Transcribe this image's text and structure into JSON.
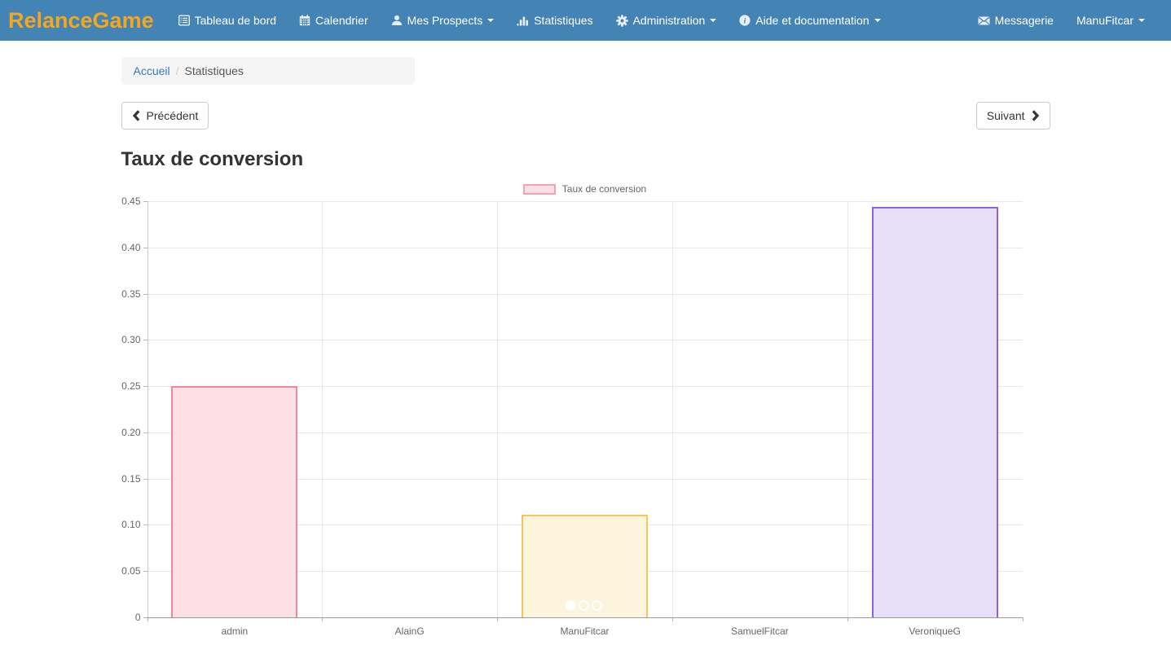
{
  "navbar": {
    "brand": "RelanceGame",
    "colors": {
      "background": "#4484b4",
      "text": "#ffffff",
      "brand": "#f2a71f"
    },
    "items": [
      {
        "label": "Tableau de bord",
        "icon": "dashboard-icon",
        "dropdown": false
      },
      {
        "label": "Calendrier",
        "icon": "calendar-icon",
        "dropdown": false
      },
      {
        "label": "Mes Prospects",
        "icon": "user-icon",
        "dropdown": true
      },
      {
        "label": "Statistiques",
        "icon": "stats-icon",
        "dropdown": false
      },
      {
        "label": "Administration",
        "icon": "gear-icon",
        "dropdown": true
      },
      {
        "label": "Aide et documentation",
        "icon": "info-icon",
        "dropdown": true
      }
    ],
    "right_items": [
      {
        "label": "Messagerie",
        "icon": "envelope-icon",
        "dropdown": false
      },
      {
        "label": "ManuFitcar",
        "icon": null,
        "dropdown": true
      }
    ]
  },
  "breadcrumb": {
    "separator": "/",
    "items": [
      {
        "label": "Accueil",
        "link": true
      },
      {
        "label": "Statistiques",
        "link": false
      }
    ]
  },
  "pager": {
    "previous_label": "Précédent",
    "next_label": "Suivant"
  },
  "page_title": "Taux de conversion",
  "chart_data": {
    "type": "bar",
    "title": "Taux de conversion",
    "legend_position": "top",
    "legend": [
      {
        "label": "Taux de conversion",
        "fill": "#fce0e8",
        "stroke": "#f4a2b7"
      }
    ],
    "categories": [
      "admin",
      "AlainG",
      "ManuFitcar",
      "SamuelFitcar",
      "VeroniqueG"
    ],
    "values": [
      0.25,
      0,
      0.111,
      0,
      0.444
    ],
    "bar_colors": [
      {
        "fill": "#fce0e6",
        "stroke": "#f2849c"
      },
      null,
      {
        "fill": "#fdf4dd",
        "stroke": "#f4c65e"
      },
      null,
      {
        "fill": "#e7def9",
        "stroke": "#8f62dd"
      }
    ],
    "ylim": [
      0,
      0.45
    ],
    "ytick_step": 0.05,
    "ytick_labels": [
      "0",
      "0.05",
      "0.10",
      "0.15",
      "0.20",
      "0.25",
      "0.30",
      "0.35",
      "0.40",
      "0.45"
    ],
    "xlabel": "",
    "ylabel": "",
    "grid": true
  },
  "carousel": {
    "dots": 3,
    "active_index": 0
  }
}
